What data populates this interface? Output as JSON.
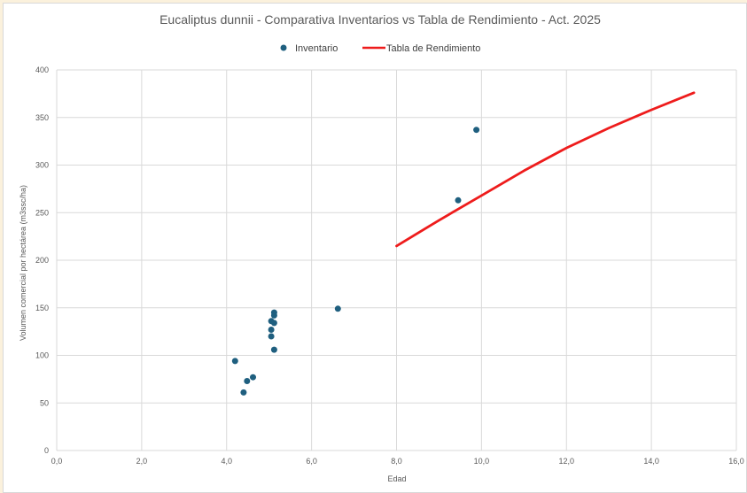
{
  "chart_data": {
    "type": "scatter",
    "title": "Eucaliptus dunnii - Comparativa Inventarios vs Tabla de Rendimiento - Act. 2025",
    "xlabel": "Edad",
    "ylabel": "Volumen comercial por hectárea (m3ssc/ha)",
    "xlim": [
      0,
      16
    ],
    "ylim": [
      0,
      400
    ],
    "x_ticks": [
      0,
      2,
      4,
      6,
      8,
      10,
      12,
      14,
      16
    ],
    "y_ticks": [
      0,
      50,
      100,
      150,
      200,
      250,
      300,
      350,
      400
    ],
    "x_tick_labels": [
      "0,0",
      "2,0",
      "4,0",
      "6,0",
      "8,0",
      "10,0",
      "12,0",
      "14,0",
      "16,0"
    ],
    "y_tick_labels": [
      "0",
      "50",
      "100",
      "150",
      "200",
      "250",
      "300",
      "350",
      "400"
    ],
    "grid": true,
    "legend_position": "top-center",
    "series": [
      {
        "name": "Inventario",
        "type": "scatter",
        "color": "#1f5f7f",
        "points": [
          {
            "x": 4.2,
            "y": 94
          },
          {
            "x": 4.4,
            "y": 61
          },
          {
            "x": 4.48,
            "y": 73
          },
          {
            "x": 4.62,
            "y": 77
          },
          {
            "x": 5.05,
            "y": 136
          },
          {
            "x": 5.05,
            "y": 127
          },
          {
            "x": 5.05,
            "y": 120
          },
          {
            "x": 5.12,
            "y": 145
          },
          {
            "x": 5.12,
            "y": 142
          },
          {
            "x": 5.12,
            "y": 134
          },
          {
            "x": 5.12,
            "y": 106
          },
          {
            "x": 6.62,
            "y": 149
          },
          {
            "x": 9.45,
            "y": 263
          },
          {
            "x": 9.88,
            "y": 337
          }
        ]
      },
      {
        "name": "Tabla de Rendimiento",
        "type": "line",
        "color": "#ee1c1c",
        "points": [
          {
            "x": 8,
            "y": 215
          },
          {
            "x": 9,
            "y": 242
          },
          {
            "x": 10,
            "y": 268
          },
          {
            "x": 11,
            "y": 294
          },
          {
            "x": 12,
            "y": 318
          },
          {
            "x": 13,
            "y": 339
          },
          {
            "x": 14,
            "y": 358
          },
          {
            "x": 15,
            "y": 376
          }
        ]
      }
    ]
  }
}
